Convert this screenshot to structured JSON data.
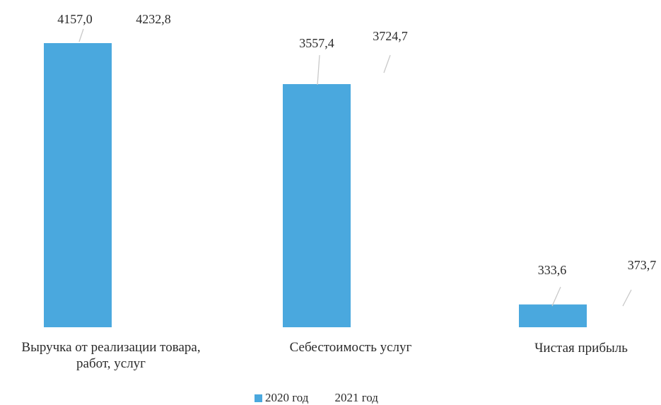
{
  "chart_data": {
    "type": "bar",
    "categories": [
      [
        "Выручка от реализации товара,",
        "работ, услуг"
      ],
      [
        "Себестоимость услуг"
      ],
      [
        "Чистая прибыль"
      ]
    ],
    "series": [
      {
        "name": "2020 год",
        "values": [
          4157.0,
          3557.4,
          333.6
        ],
        "labels": [
          "4157,0",
          "3557,4",
          "333,6"
        ],
        "color": "#4aa8de"
      },
      {
        "name": "2021 год",
        "values": [
          4232.8,
          3724.7,
          373.7
        ],
        "labels": [
          "4232,8",
          "3724,7",
          "373,7"
        ],
        "color": "#ffffff"
      }
    ],
    "ylim": [
      0,
      4500
    ],
    "legend_position": "bottom",
    "grid": false,
    "leader_line_color": "#c9c9c9"
  }
}
